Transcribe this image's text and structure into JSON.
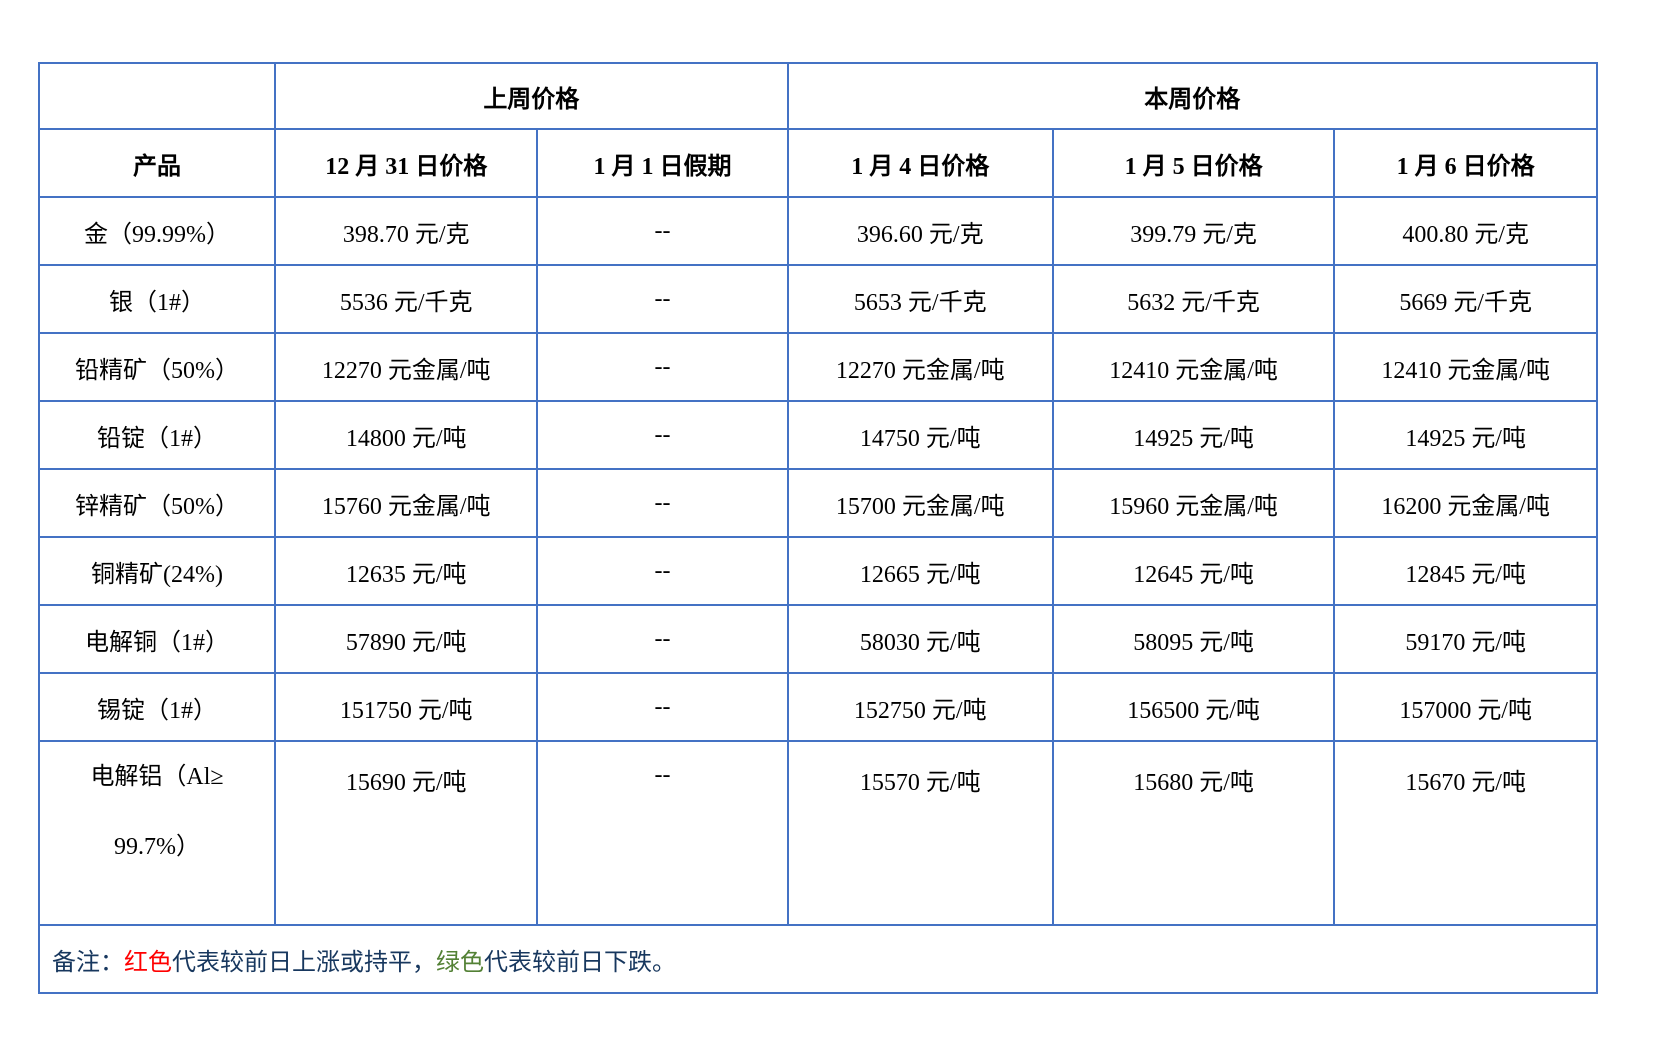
{
  "header": {
    "corner": "",
    "groups": [
      {
        "label": "上周价格",
        "colspan": 2
      },
      {
        "label": "本周价格",
        "colspan": 3
      }
    ],
    "product_col": "产品",
    "date_cols": [
      "12 月 31 日价格",
      "1 月 1 日假期",
      "1 月 4 日价格",
      "1 月 5 日价格",
      "1 月 6 日价格"
    ]
  },
  "rows": [
    {
      "product": "金（99.99%）",
      "cells": [
        {
          "text": "398.70 元/克",
          "color": "red"
        },
        {
          "text": "--",
          "color": "red"
        },
        {
          "text": "396.60 元/克",
          "color": "green"
        },
        {
          "text": "399.79 元/克",
          "color": "red"
        },
        {
          "text": "400.80 元/克",
          "color": "red"
        }
      ]
    },
    {
      "product": "银（1#）",
      "cells": [
        {
          "text": "5536 元/千克",
          "color": "red"
        },
        {
          "text": "--",
          "color": "red"
        },
        {
          "text": "5653 元/千克",
          "color": "red"
        },
        {
          "text": "5632 元/千克",
          "color": "green"
        },
        {
          "text": "5669 元/千克",
          "color": "red"
        }
      ]
    },
    {
      "product": "铅精矿（50%）",
      "cells": [
        {
          "text": "12270 元金属/吨",
          "color": "red"
        },
        {
          "text": "--",
          "color": "red"
        },
        {
          "text": "12270 元金属/吨",
          "color": "red"
        },
        {
          "text": "12410 元金属/吨",
          "color": "red"
        },
        {
          "text": "12410 元金属/吨",
          "color": "red"
        }
      ]
    },
    {
      "product": "铅锭（1#）",
      "cells": [
        {
          "text": "14800 元/吨",
          "color": "red"
        },
        {
          "text": "--",
          "color": "red"
        },
        {
          "text": "14750 元/吨",
          "color": "green"
        },
        {
          "text": "14925 元/吨",
          "color": "red"
        },
        {
          "text": "14925 元/吨",
          "color": "red"
        }
      ]
    },
    {
      "product": "锌精矿（50%）",
      "cells": [
        {
          "text": "15760 元金属/吨",
          "color": "green"
        },
        {
          "text": "--",
          "color": "red"
        },
        {
          "text": "15700 元金属/吨",
          "color": "green"
        },
        {
          "text": "15960 元金属/吨",
          "color": "red"
        },
        {
          "text": "16200 元金属/吨",
          "color": "red"
        }
      ]
    },
    {
      "product": "铜精矿(24%)",
      "cells": [
        {
          "text": "12635 元/吨",
          "color": "green"
        },
        {
          "text": "--",
          "color": "red"
        },
        {
          "text": "12665 元/吨",
          "color": "red"
        },
        {
          "text": "12645 元/吨",
          "color": "green"
        },
        {
          "text": "12845 元/吨",
          "color": "red"
        }
      ]
    },
    {
      "product": "电解铜（1#）",
      "cells": [
        {
          "text": "57890 元/吨",
          "color": "green"
        },
        {
          "text": "--",
          "color": "red"
        },
        {
          "text": "58030 元/吨",
          "color": "red"
        },
        {
          "text": "58095 元/吨",
          "color": "red"
        },
        {
          "text": "59170 元/吨",
          "color": "red"
        }
      ]
    },
    {
      "product": "锡锭（1#）",
      "cells": [
        {
          "text": "151750 元/吨",
          "color": "green"
        },
        {
          "text": "--",
          "color": "red"
        },
        {
          "text": "152750 元/吨",
          "color": "red"
        },
        {
          "text": "156500 元/吨",
          "color": "red"
        },
        {
          "text": "157000 元/吨",
          "color": "red"
        }
      ]
    },
    {
      "product": "电解铝（Al≥\n99.7%）",
      "cells": [
        {
          "text": "15690 元/吨",
          "color": "green"
        },
        {
          "text": "--",
          "color": "red"
        },
        {
          "text": "15570 元/吨",
          "color": "green"
        },
        {
          "text": "15680 元/吨",
          "color": "red"
        },
        {
          "text": "15670 元/吨",
          "color": "green"
        }
      ]
    }
  ],
  "note": {
    "prefix": "备注：",
    "red_label": "红色",
    "mid": "代表较前日上涨或持平，",
    "green_label": "绿色",
    "suffix": "代表较前日下跌。"
  },
  "colors": {
    "up_or_flat": "#FF0000",
    "down": "#538135",
    "border": "#4472C4",
    "note_text": "#17375E"
  }
}
